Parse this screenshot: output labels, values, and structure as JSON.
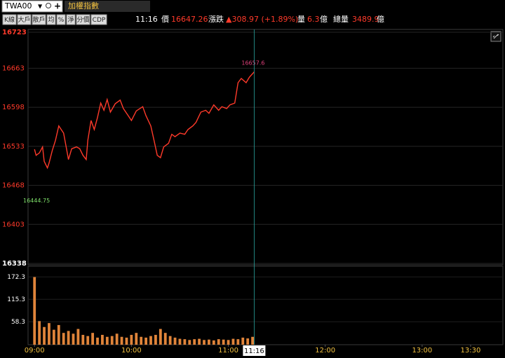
{
  "chart_data": {
    "type": "line",
    "symbol": "TWA00",
    "title": "加權指數",
    "toolbar": [
      "K線",
      "大戶",
      "散戶",
      "均",
      "%",
      "淨",
      "分價",
      "CDP"
    ],
    "quote": {
      "time": "11:16",
      "price_label": "價",
      "price": "16647.26",
      "change_label": "漲跌",
      "change": "▲308.97 (+1.89%)",
      "volume_label": "量",
      "volume": "6.3",
      "volume_unit": "億",
      "total_label": "總量",
      "total": "3489.9",
      "total_unit": "億"
    },
    "x": [
      0,
      1,
      3,
      5,
      6,
      8,
      9,
      11,
      13,
      15,
      18,
      20,
      21,
      23,
      26,
      28,
      30,
      32,
      33,
      35,
      37,
      39,
      41,
      43,
      45,
      47,
      50,
      53,
      55,
      58,
      60,
      63,
      67,
      69,
      72,
      74,
      76,
      78,
      80,
      83,
      85,
      87,
      90,
      93,
      95,
      98,
      100,
      103,
      106,
      108,
      111,
      114,
      116,
      119,
      121,
      124,
      126,
      128,
      131,
      133,
      136
    ],
    "values": [
      16528,
      16518,
      16522,
      16532,
      16508,
      16497,
      16505,
      16526,
      16543,
      16567,
      16555,
      16526,
      16511,
      16529,
      16532,
      16529,
      16518,
      16511,
      16543,
      16576,
      16561,
      16581,
      16605,
      16593,
      16611,
      16590,
      16604,
      16610,
      16596,
      16584,
      16576,
      16592,
      16599,
      16584,
      16567,
      16543,
      16518,
      16514,
      16532,
      16538,
      16553,
      16549,
      16555,
      16553,
      16561,
      16567,
      16573,
      16590,
      16593,
      16588,
      16602,
      16593,
      16599,
      16596,
      16602,
      16605,
      16639,
      16646,
      16639,
      16648,
      16657
    ],
    "color": "#ff3a2a",
    "xlim": [
      -4,
      290
    ],
    "xticks": [
      {
        "value": 0,
        "label": "09:00"
      },
      {
        "value": 60,
        "label": "10:00"
      },
      {
        "value": 120,
        "label": "11:00"
      },
      {
        "value": 180,
        "label": "12:00"
      },
      {
        "value": 240,
        "label": "13:00"
      },
      {
        "value": 270,
        "label": "13:30"
      }
    ],
    "ylim": [
      16338,
      16723
    ],
    "yticks": [
      16338,
      16403,
      16468,
      16533,
      16598,
      16663,
      16723
    ],
    "grid": true,
    "annotations": [
      {
        "x": 136,
        "y": 16657.6,
        "text": "16657.6",
        "color": "#e0407a"
      },
      {
        "x": 0,
        "y": 16444.75,
        "text": "16444.75",
        "color": "#7ee06a"
      }
    ],
    "cursor": {
      "x": 136,
      "label": "11:16"
    },
    "volume": {
      "type": "bar",
      "x": [
        0,
        3,
        6,
        9,
        12,
        15,
        18,
        21,
        24,
        27,
        30,
        33,
        36,
        39,
        42,
        45,
        48,
        51,
        54,
        57,
        60,
        63,
        66,
        69,
        72,
        75,
        78,
        81,
        84,
        87,
        90,
        93,
        96,
        99,
        102,
        105,
        108,
        111,
        114,
        117,
        120,
        123,
        126,
        129,
        132,
        135
      ],
      "values": [
        172,
        60,
        45,
        55,
        38,
        50,
        30,
        35,
        28,
        40,
        25,
        22,
        30,
        18,
        25,
        20,
        22,
        28,
        20,
        18,
        25,
        30,
        20,
        18,
        22,
        25,
        40,
        30,
        22,
        18,
        15,
        14,
        12,
        14,
        15,
        12,
        13,
        11,
        14,
        13,
        12,
        15,
        14,
        18,
        16,
        20
      ],
      "color": "#e0843a",
      "ylim": [
        0,
        196
      ],
      "yticks": [
        58.3,
        115.3,
        172.3
      ]
    }
  }
}
